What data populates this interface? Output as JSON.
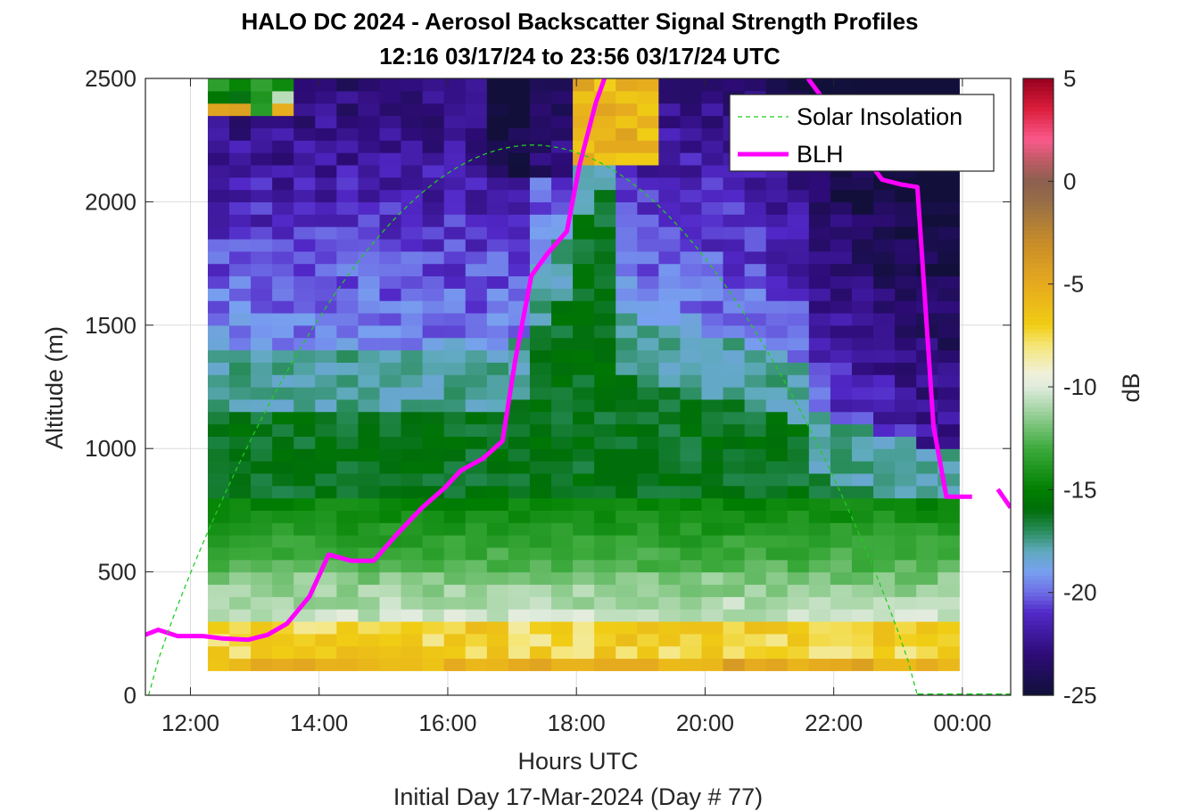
{
  "chart_data": {
    "type": "heatmap",
    "title": "HALO DC 2024 - Aerosol Backscatter Signal Strength Profiles",
    "subtitle": "12:16 03/17/24 to 23:56 03/17/24  UTC",
    "xlabel": "Hours UTC",
    "xlabel2": "Initial Day 17-Mar-2024 (Day # 77)",
    "ylabel": "Altitude (m)",
    "xlim": [
      11.3,
      24.75
    ],
    "ylim": [
      0,
      2500
    ],
    "x_ticks": [
      12,
      14,
      16,
      18,
      20,
      22,
      24
    ],
    "x_tick_labels": [
      "12:00",
      "14:00",
      "16:00",
      "18:00",
      "20:00",
      "22:00",
      "00:00"
    ],
    "y_ticks": [
      0,
      500,
      1000,
      1500,
      2000,
      2500
    ],
    "y_tick_labels": [
      "0",
      "500",
      "1000",
      "1500",
      "2000",
      "2500"
    ],
    "grid": true,
    "colorbar": {
      "label": "dB",
      "range": [
        -25,
        5
      ],
      "ticks": [
        5,
        0,
        -5,
        -10,
        -15,
        -20,
        -25
      ],
      "tick_labels": [
        "5",
        "0",
        "-5",
        "-10",
        "-15",
        "-20",
        "-25"
      ]
    },
    "heatmap": {
      "x_start": 12.27,
      "x_end": 23.95,
      "y_start": 100,
      "y_end": 2500,
      "n_x": 35,
      "n_y": 48
    },
    "legend": {
      "position": "top-right",
      "entries": [
        "Solar Insolation",
        "BLH"
      ]
    },
    "series": [
      {
        "name": "BLH",
        "color": "#ff00ff",
        "x": [
          11.3,
          11.5,
          11.8,
          12.2,
          12.5,
          12.9,
          13.2,
          13.5,
          13.85,
          14.15,
          14.5,
          14.85,
          15.2,
          15.6,
          15.95,
          16.2,
          16.55,
          16.85,
          17.05,
          17.3,
          17.55,
          17.85,
          18.05,
          18.3,
          18.45
        ],
        "y": [
          245,
          265,
          240,
          240,
          230,
          225,
          245,
          290,
          400,
          570,
          545,
          545,
          650,
          760,
          840,
          910,
          960,
          1030,
          1360,
          1700,
          1790,
          1880,
          2150,
          2400,
          2510
        ]
      },
      {
        "name": "BLH",
        "color": "#ff00ff",
        "x": [
          21.6,
          22.3,
          22.75,
          23.05,
          23.3,
          23.55,
          23.75,
          24.0,
          24.15
        ],
        "y": [
          2500,
          2250,
          2090,
          2070,
          2060,
          1090,
          805,
          805,
          805
        ]
      },
      {
        "name": "BLH",
        "color": "#ff00ff",
        "x": [
          24.55,
          24.75
        ],
        "y": [
          835,
          760
        ]
      },
      {
        "name": "Solar Insolation",
        "color": "#22cc22",
        "style": "dashed",
        "x_start": 11.35,
        "x_peak": 17.35,
        "x_end": 23.3,
        "y_peak": 2230,
        "flat_x": [
          23.3,
          24.75
        ],
        "flat_y": [
          0,
          0
        ]
      }
    ]
  }
}
